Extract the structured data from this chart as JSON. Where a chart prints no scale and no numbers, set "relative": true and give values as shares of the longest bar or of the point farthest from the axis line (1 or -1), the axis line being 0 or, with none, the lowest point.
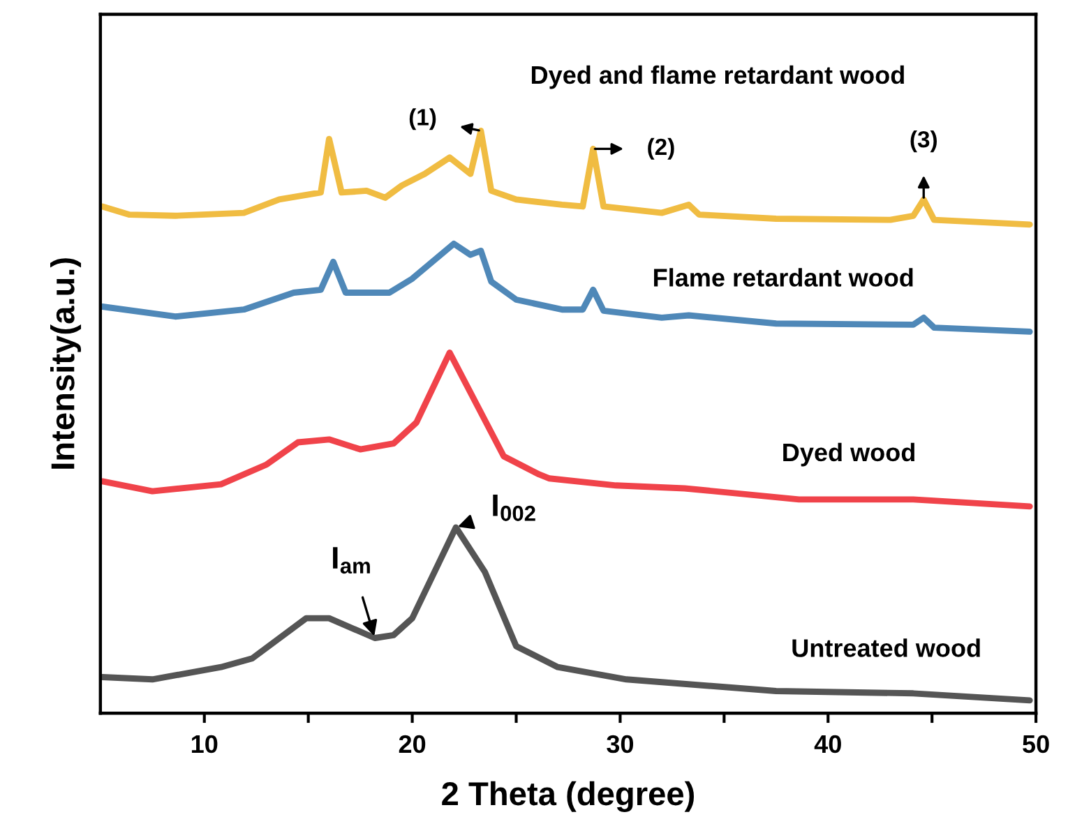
{
  "chart_data": {
    "type": "line",
    "relative": true,
    "xlabel": "2 Theta (degree)",
    "ylabel": "Intensity(a.u.)",
    "xlim": [
      5,
      50
    ],
    "xticks": [
      10,
      {
        "value": 15,
        "label": null
      },
      20,
      {
        "value": 25,
        "label": null
      },
      30,
      {
        "value": 35,
        "label": null
      },
      40,
      {
        "value": 45,
        "label": null
      },
      50
    ],
    "tick_labels": "x",
    "grid": false,
    "legend": false,
    "marker": "none",
    "line_style": "solid",
    "series": [
      {
        "name": "Dyed and flame retardant wood",
        "color": "#f0bc42",
        "x": [
          5.1,
          6.4,
          8.6,
          11.9,
          13.6,
          15.6,
          16.0,
          16.6,
          17.8,
          18.7,
          19.5,
          20.6,
          21.8,
          22.8,
          23.3,
          23.8,
          25.0,
          27.2,
          28.2,
          28.7,
          29.2,
          32.0,
          33.3,
          33.8,
          37.5,
          43.0,
          44.1,
          44.6,
          45.1,
          49.7
        ],
        "values": [
          0.87,
          0.856,
          0.854,
          0.859,
          0.882,
          0.894,
          0.986,
          0.894,
          0.897,
          0.885,
          0.906,
          0.926,
          0.954,
          0.926,
          1,
          0.897,
          0.882,
          0.873,
          0.87,
          0.969,
          0.87,
          0.859,
          0.873,
          0.856,
          0.849,
          0.847,
          0.854,
          0.882,
          0.847,
          0.839
        ]
      },
      {
        "name": "Flame retardant wood",
        "color": "#4f88b8",
        "x": [
          5.1,
          8.6,
          11.9,
          14.3,
          15.6,
          16.2,
          16.8,
          18.9,
          20.0,
          22.0,
          22.8,
          23.3,
          23.8,
          25.0,
          27.2,
          28.2,
          28.7,
          29.2,
          32.0,
          33.3,
          37.5,
          44.1,
          44.6,
          45.1,
          49.7
        ],
        "values": [
          0.698,
          0.681,
          0.693,
          0.722,
          0.727,
          0.775,
          0.722,
          0.722,
          0.746,
          0.806,
          0.787,
          0.794,
          0.741,
          0.71,
          0.693,
          0.693,
          0.727,
          0.691,
          0.679,
          0.683,
          0.669,
          0.667,
          0.679,
          0.662,
          0.655
        ]
      },
      {
        "name": "Dyed wood",
        "color": "#f0434a",
        "x": [
          5.1,
          7.5,
          10.8,
          13.0,
          14.5,
          16.0,
          17.5,
          19.1,
          20.2,
          21.8,
          23.1,
          24.4,
          26.1,
          26.6,
          29.8,
          33.1,
          38.6,
          44.1,
          49.7
        ],
        "values": [
          0.398,
          0.381,
          0.393,
          0.427,
          0.465,
          0.47,
          0.453,
          0.463,
          0.499,
          0.619,
          0.53,
          0.441,
          0.41,
          0.403,
          0.391,
          0.386,
          0.367,
          0.367,
          0.355
        ]
      },
      {
        "name": "Untreated wood",
        "color": "#555555",
        "x": [
          5.1,
          7.5,
          10.8,
          12.3,
          14.9,
          16.0,
          18.2,
          19.1,
          20.0,
          22.1,
          23.5,
          25.0,
          27.0,
          30.3,
          37.5,
          44.1,
          49.7
        ],
        "values": [
          0.062,
          0.058,
          0.079,
          0.094,
          0.163,
          0.163,
          0.129,
          0.134,
          0.163,
          0.319,
          0.242,
          0.115,
          0.079,
          0.058,
          0.038,
          0.034,
          0.022
        ]
      }
    ],
    "annotations": [
      {
        "text": "(1)",
        "x": 23.3,
        "y": 1
      },
      {
        "text": "(2)",
        "x": 28.7,
        "y": 0.969
      },
      {
        "text": "(3)",
        "x": 44.6,
        "y": 0.882
      },
      {
        "text": "I$_{am}$",
        "x": 18.2,
        "y": 0.129
      },
      {
        "text": "I$_{002}$",
        "x": 22.1,
        "y": 0.319
      }
    ]
  }
}
